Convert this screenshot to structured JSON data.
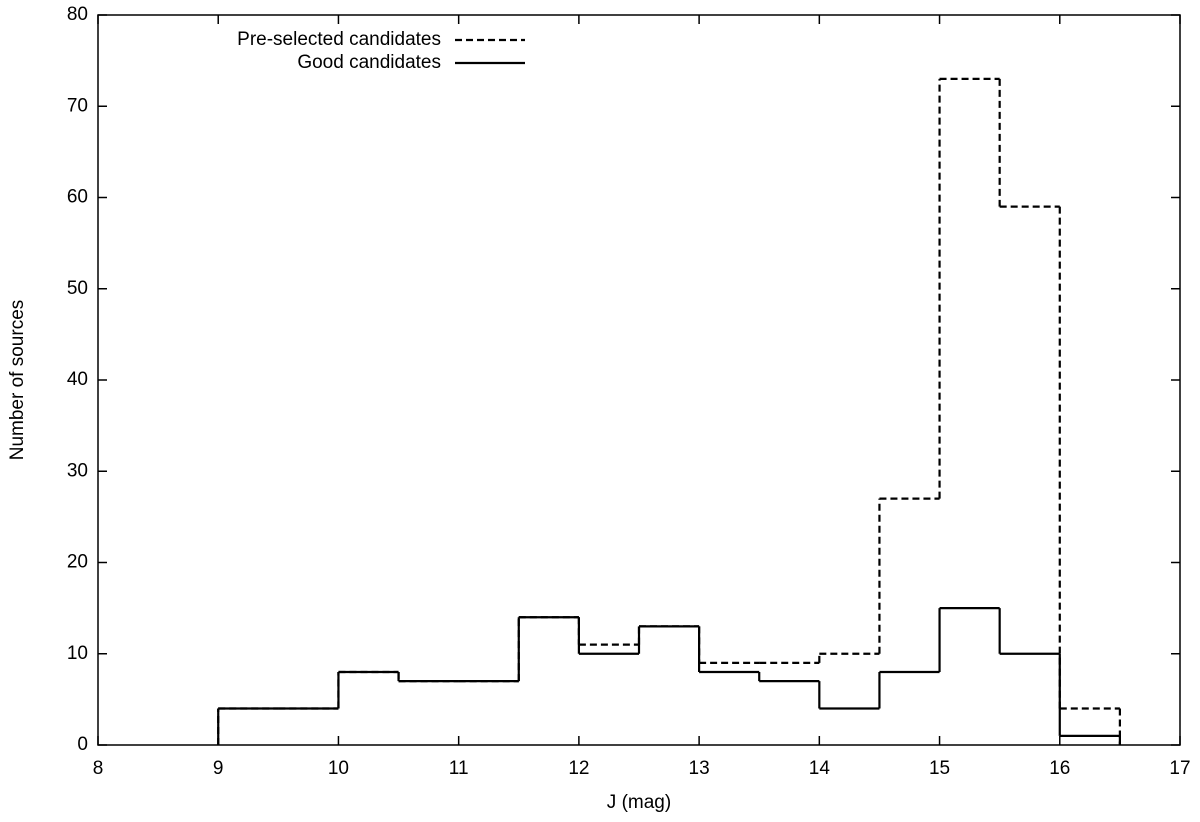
{
  "chart_data": {
    "type": "histogram",
    "x_label": "J (mag)",
    "y_label": "Number of sources",
    "bins": [
      9,
      9.5,
      10,
      10.5,
      11,
      11.5,
      12,
      12.5,
      13,
      13.5,
      14,
      14.5,
      15,
      15.5,
      16,
      16.5
    ],
    "series": [
      {
        "name": "Pre-selected candidates",
        "color": "#000000",
        "dash": "dashed",
        "values": [
          4,
          4,
          8,
          7,
          7,
          14,
          11,
          13,
          9,
          9,
          10,
          27,
          73,
          59,
          4
        ]
      },
      {
        "name": "Good candidates",
        "color": "#000000",
        "dash": "solid",
        "values": [
          4,
          4,
          8,
          7,
          7,
          14,
          10,
          13,
          8,
          7,
          4,
          8,
          15,
          10,
          1
        ]
      }
    ],
    "xlim": [
      8,
      17
    ],
    "xticks": [
      8,
      9,
      10,
      11,
      12,
      13,
      14,
      15,
      16,
      17
    ],
    "ylim": [
      0,
      80
    ],
    "yticks": [
      0,
      10,
      20,
      30,
      40,
      50,
      60,
      70,
      80
    ],
    "grid": false,
    "legend": "top-left"
  }
}
